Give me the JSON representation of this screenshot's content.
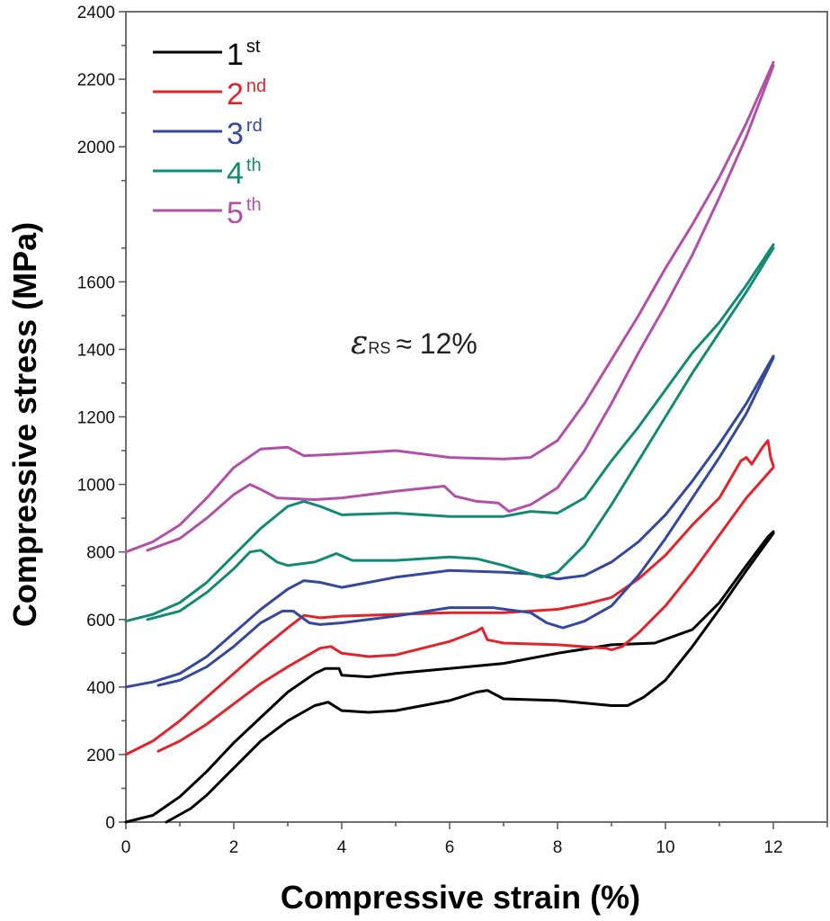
{
  "chart_data": {
    "type": "line",
    "title": "",
    "xlabel": "Compressive strain (%)",
    "ylabel": "Compressive stress (MPa)",
    "xlim": [
      0,
      13
    ],
    "ylim": [
      0,
      2400
    ],
    "xticks": [
      0,
      2,
      4,
      6,
      8,
      10,
      12
    ],
    "xtick_labels": [
      "0",
      "2",
      "4",
      "6",
      "8",
      "10",
      "12"
    ],
    "x_minor_ticks": [
      1,
      3,
      5,
      7,
      9,
      11
    ],
    "yticks": [
      0,
      200,
      400,
      600,
      800,
      1000,
      1200,
      1400,
      1600,
      2000,
      2200,
      2400
    ],
    "ytick_labels": [
      "0",
      "200",
      "400",
      "600",
      "800",
      "1000",
      "1200",
      "1400",
      "1600",
      "2000",
      "2200",
      "2400"
    ],
    "y_minor_ticks": [
      100,
      300,
      500,
      700,
      900,
      1100,
      1300,
      1500,
      1700,
      1900,
      2100,
      2300
    ],
    "grid": false,
    "legend_position": "top-left",
    "annotation": {
      "symbol": "ε",
      "subscript": "RS",
      "text": "≈ 12%"
    },
    "series": [
      {
        "name": "1st",
        "number": "1",
        "suffix": "st",
        "color": "#000000",
        "segments": [
          [
            [
              0,
              0
            ],
            [
              0.5,
              20
            ],
            [
              1,
              75
            ],
            [
              1.5,
              150
            ],
            [
              2,
              235
            ],
            [
              2.5,
              310
            ],
            [
              3,
              385
            ],
            [
              3.5,
              440
            ],
            [
              3.7,
              455
            ],
            [
              3.95,
              455
            ],
            [
              4.0,
              435
            ],
            [
              4.5,
              430
            ],
            [
              5,
              440
            ],
            [
              6,
              455
            ],
            [
              7,
              470
            ],
            [
              8,
              500
            ],
            [
              9,
              525
            ],
            [
              9.8,
              530
            ],
            [
              10.5,
              570
            ],
            [
              11,
              650
            ],
            [
              11.5,
              760
            ],
            [
              11.9,
              845
            ],
            [
              12,
              860
            ]
          ],
          [
            [
              0.75,
              0
            ],
            [
              1.2,
              40
            ],
            [
              1.5,
              80
            ],
            [
              2,
              160
            ],
            [
              2.5,
              240
            ],
            [
              3,
              300
            ],
            [
              3.5,
              345
            ],
            [
              3.75,
              355
            ],
            [
              4,
              330
            ],
            [
              4.5,
              325
            ],
            [
              5,
              330
            ],
            [
              6,
              360
            ],
            [
              6.5,
              385
            ],
            [
              6.7,
              390
            ],
            [
              7,
              365
            ],
            [
              8,
              360
            ],
            [
              9,
              345
            ],
            [
              9.3,
              345
            ],
            [
              9.6,
              370
            ],
            [
              10,
              420
            ],
            [
              10.5,
              520
            ],
            [
              11,
              630
            ],
            [
              11.5,
              745
            ],
            [
              12,
              855
            ]
          ]
        ]
      },
      {
        "name": "2nd",
        "number": "2",
        "suffix": "nd",
        "color": "#e0242a",
        "segments": [
          [
            [
              0,
              200
            ],
            [
              0.5,
              240
            ],
            [
              1,
              300
            ],
            [
              1.5,
              370
            ],
            [
              2,
              440
            ],
            [
              2.5,
              510
            ],
            [
              3,
              575
            ],
            [
              3.3,
              612
            ],
            [
              3.6,
              605
            ],
            [
              4,
              610
            ],
            [
              5,
              615
            ],
            [
              6,
              620
            ],
            [
              7,
              620
            ],
            [
              8,
              630
            ],
            [
              8.5,
              645
            ],
            [
              9,
              665
            ],
            [
              9.5,
              720
            ],
            [
              10,
              790
            ],
            [
              10.5,
              880
            ],
            [
              11,
              960
            ],
            [
              11.4,
              1070
            ],
            [
              11.5,
              1080
            ],
            [
              11.6,
              1060
            ],
            [
              11.8,
              1110
            ],
            [
              11.9,
              1130
            ],
            [
              11.95,
              1080
            ],
            [
              12,
              1055
            ]
          ],
          [
            [
              0.6,
              210
            ],
            [
              1,
              240
            ],
            [
              1.5,
              290
            ],
            [
              2,
              350
            ],
            [
              2.5,
              410
            ],
            [
              3,
              460
            ],
            [
              3.6,
              515
            ],
            [
              3.8,
              520
            ],
            [
              4,
              500
            ],
            [
              4.5,
              490
            ],
            [
              5,
              495
            ],
            [
              6,
              535
            ],
            [
              6.5,
              565
            ],
            [
              6.6,
              575
            ],
            [
              6.7,
              540
            ],
            [
              7,
              530
            ],
            [
              8,
              525
            ],
            [
              8.9,
              515
            ],
            [
              9,
              510
            ],
            [
              9.2,
              520
            ],
            [
              9.5,
              560
            ],
            [
              10,
              640
            ],
            [
              10.5,
              740
            ],
            [
              11,
              850
            ],
            [
              11.5,
              960
            ],
            [
              12,
              1050
            ]
          ]
        ]
      },
      {
        "name": "3rd",
        "number": "3",
        "suffix": "rd",
        "color": "#34489c",
        "segments": [
          [
            [
              0,
              400
            ],
            [
              0.5,
              415
            ],
            [
              1,
              440
            ],
            [
              1.5,
              490
            ],
            [
              2,
              560
            ],
            [
              2.5,
              630
            ],
            [
              3,
              690
            ],
            [
              3.3,
              715
            ],
            [
              3.6,
              710
            ],
            [
              4,
              695
            ],
            [
              4.5,
              710
            ],
            [
              5,
              725
            ],
            [
              6,
              745
            ],
            [
              7,
              740
            ],
            [
              7.5,
              735
            ],
            [
              8,
              720
            ],
            [
              8.5,
              730
            ],
            [
              9,
              770
            ],
            [
              9.5,
              830
            ],
            [
              10,
              910
            ],
            [
              10.5,
              1010
            ],
            [
              11,
              1120
            ],
            [
              11.5,
              1240
            ],
            [
              12,
              1380
            ]
          ],
          [
            [
              0.6,
              405
            ],
            [
              1,
              420
            ],
            [
              1.5,
              460
            ],
            [
              2,
              520
            ],
            [
              2.5,
              590
            ],
            [
              2.9,
              625
            ],
            [
              3.1,
              625
            ],
            [
              3.4,
              590
            ],
            [
              3.6,
              585
            ],
            [
              4,
              590
            ],
            [
              5,
              610
            ],
            [
              6,
              635
            ],
            [
              6.8,
              635
            ],
            [
              7.5,
              620
            ],
            [
              7.8,
              590
            ],
            [
              8.1,
              575
            ],
            [
              8.5,
              595
            ],
            [
              9,
              640
            ],
            [
              9.5,
              730
            ],
            [
              10,
              840
            ],
            [
              10.5,
              960
            ],
            [
              11,
              1080
            ],
            [
              11.5,
              1210
            ],
            [
              12,
              1375
            ]
          ]
        ]
      },
      {
        "name": "4th",
        "number": "4",
        "suffix": "th",
        "color": "#138a74",
        "segments": [
          [
            [
              0,
              595
            ],
            [
              0.5,
              615
            ],
            [
              1,
              650
            ],
            [
              1.5,
              710
            ],
            [
              2,
              790
            ],
            [
              2.5,
              870
            ],
            [
              3,
              935
            ],
            [
              3.3,
              950
            ],
            [
              3.6,
              935
            ],
            [
              4,
              910
            ],
            [
              5,
              915
            ],
            [
              6,
              905
            ],
            [
              7,
              905
            ],
            [
              7.5,
              920
            ],
            [
              8,
              915
            ],
            [
              8.5,
              960
            ],
            [
              9,
              1070
            ],
            [
              9.5,
              1170
            ],
            [
              10,
              1280
            ],
            [
              10.5,
              1390
            ],
            [
              11,
              1480
            ],
            [
              11.5,
              1590
            ],
            [
              12,
              1710
            ]
          ],
          [
            [
              0.4,
              600
            ],
            [
              1,
              625
            ],
            [
              1.5,
              680
            ],
            [
              2,
              750
            ],
            [
              2.3,
              800
            ],
            [
              2.5,
              805
            ],
            [
              2.8,
              770
            ],
            [
              3,
              760
            ],
            [
              3.5,
              770
            ],
            [
              3.9,
              795
            ],
            [
              4.2,
              775
            ],
            [
              5,
              775
            ],
            [
              6,
              785
            ],
            [
              6.5,
              780
            ],
            [
              7,
              760
            ],
            [
              7.5,
              735
            ],
            [
              7.7,
              725
            ],
            [
              8,
              740
            ],
            [
              8.5,
              820
            ],
            [
              9,
              940
            ],
            [
              9.5,
              1070
            ],
            [
              10,
              1200
            ],
            [
              10.5,
              1330
            ],
            [
              11,
              1450
            ],
            [
              11.5,
              1570
            ],
            [
              12,
              1700
            ]
          ]
        ]
      },
      {
        "name": "5th",
        "number": "5",
        "suffix": "th",
        "color": "#b250a8",
        "segments": [
          [
            [
              0,
              800
            ],
            [
              0.5,
              830
            ],
            [
              1,
              880
            ],
            [
              1.5,
              960
            ],
            [
              2,
              1050
            ],
            [
              2.5,
              1105
            ],
            [
              3,
              1110
            ],
            [
              3.3,
              1085
            ],
            [
              4,
              1090
            ],
            [
              5,
              1100
            ],
            [
              6,
              1080
            ],
            [
              7,
              1075
            ],
            [
              7.5,
              1080
            ],
            [
              8,
              1130
            ],
            [
              8.5,
              1240
            ],
            [
              9,
              1370
            ],
            [
              9.5,
              1500
            ],
            [
              10,
              1640
            ],
            [
              10.5,
              1770
            ],
            [
              11,
              1910
            ],
            [
              11.5,
              2070
            ],
            [
              12,
              2250
            ]
          ],
          [
            [
              0.4,
              805
            ],
            [
              1,
              840
            ],
            [
              1.5,
              900
            ],
            [
              2,
              970
            ],
            [
              2.3,
              1000
            ],
            [
              2.5,
              985
            ],
            [
              2.8,
              960
            ],
            [
              3.5,
              955
            ],
            [
              4,
              960
            ],
            [
              5,
              980
            ],
            [
              5.9,
              995
            ],
            [
              6.1,
              965
            ],
            [
              6.5,
              950
            ],
            [
              6.9,
              945
            ],
            [
              7.1,
              920
            ],
            [
              7.5,
              940
            ],
            [
              8,
              990
            ],
            [
              8.5,
              1100
            ],
            [
              9,
              1240
            ],
            [
              9.5,
              1390
            ],
            [
              10,
              1530
            ],
            [
              10.5,
              1680
            ],
            [
              11,
              1850
            ],
            [
              11.5,
              2030
            ],
            [
              12,
              2240
            ]
          ]
        ]
      }
    ]
  }
}
